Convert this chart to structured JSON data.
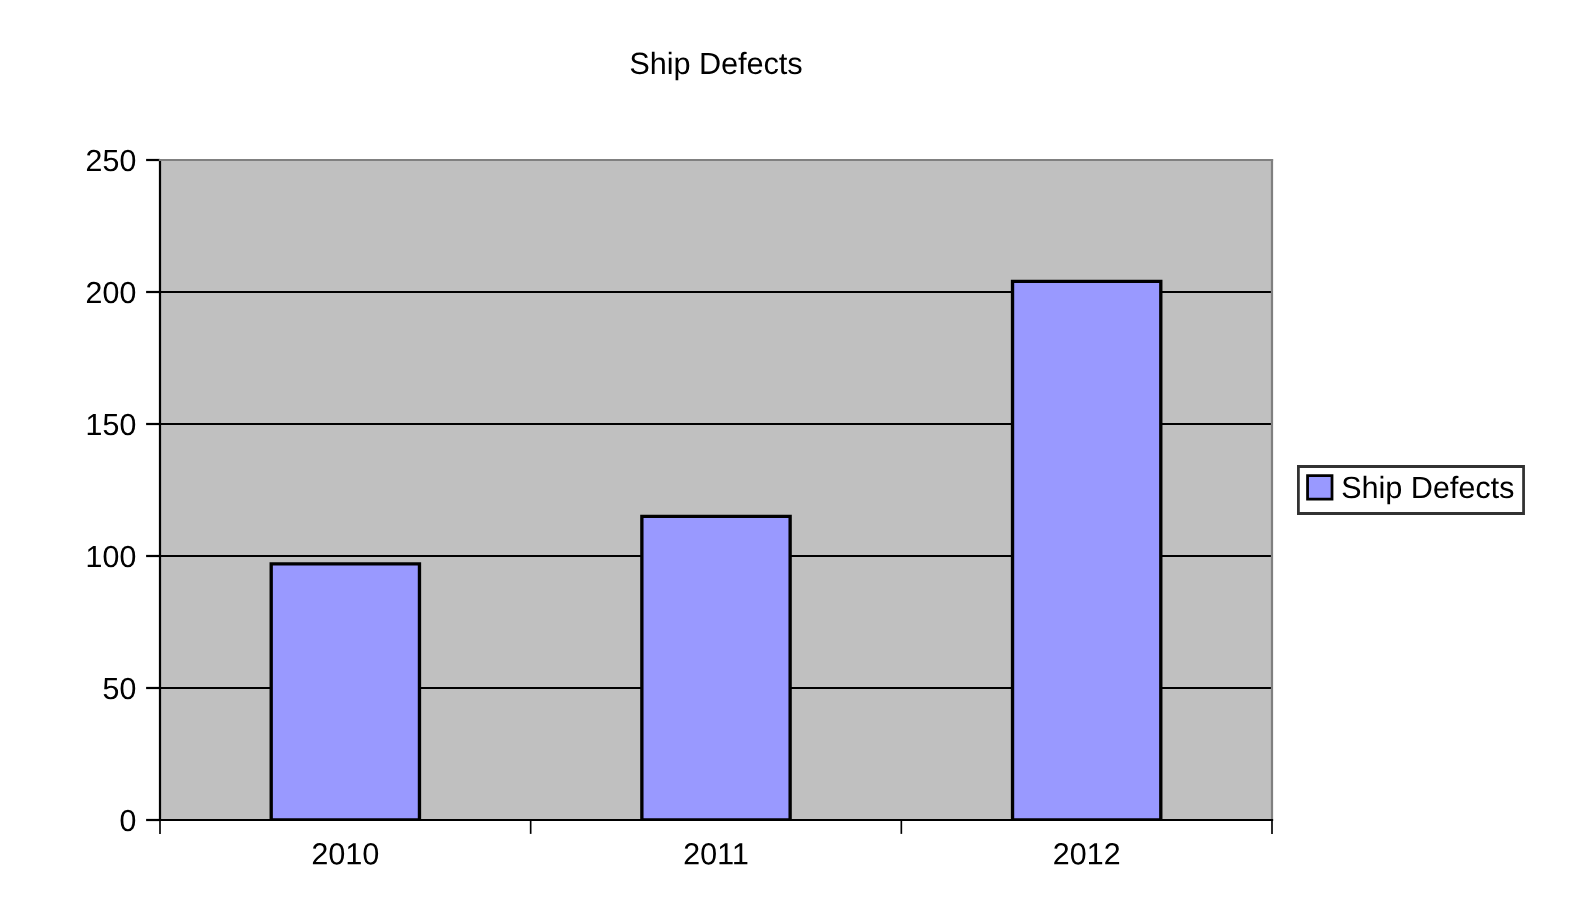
{
  "chart_data": {
    "type": "bar",
    "title": "Ship Defects",
    "categories": [
      "2010",
      "2011",
      "2012"
    ],
    "series": [
      {
        "name": "Ship Defects",
        "color": "#9999ff",
        "values": [
          97,
          115,
          204
        ]
      }
    ],
    "ylim": [
      0,
      250
    ],
    "yticks": [
      0,
      50,
      100,
      150,
      200,
      250
    ],
    "grid": "y",
    "legend": "right"
  }
}
